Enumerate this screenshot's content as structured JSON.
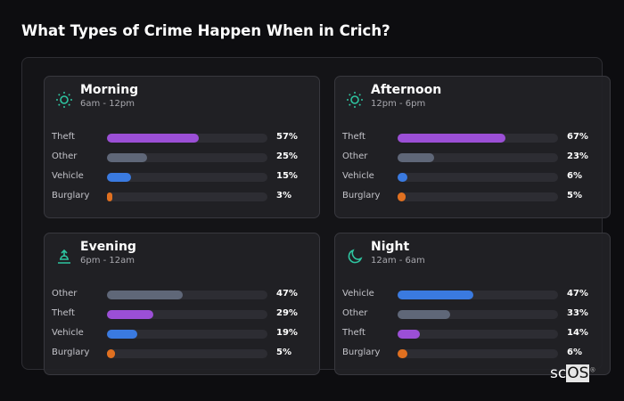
{
  "title": "What Types of Crime Happen When in Crich?",
  "colors": {
    "Theft": "#9b4fd6",
    "Other": "#5f6778",
    "Vehicle": "#3a7ae0",
    "Burglary": "#e07020",
    "icon": "#2ec4a0"
  },
  "cards": [
    {
      "name": "Morning",
      "range": "6am - 12pm",
      "icon": "sun-icon",
      "rows": [
        {
          "label": "Theft",
          "value": 57,
          "text": "57%"
        },
        {
          "label": "Other",
          "value": 25,
          "text": "25%"
        },
        {
          "label": "Vehicle",
          "value": 15,
          "text": "15%"
        },
        {
          "label": "Burglary",
          "value": 3,
          "text": "3%"
        }
      ]
    },
    {
      "name": "Afternoon",
      "range": "12pm - 6pm",
      "icon": "sun-icon",
      "rows": [
        {
          "label": "Theft",
          "value": 67,
          "text": "67%"
        },
        {
          "label": "Other",
          "value": 23,
          "text": "23%"
        },
        {
          "label": "Vehicle",
          "value": 6,
          "text": "6%"
        },
        {
          "label": "Burglary",
          "value": 5,
          "text": "5%"
        }
      ]
    },
    {
      "name": "Evening",
      "range": "6pm - 12am",
      "icon": "sunset-icon",
      "rows": [
        {
          "label": "Other",
          "value": 47,
          "text": "47%"
        },
        {
          "label": "Theft",
          "value": 29,
          "text": "29%"
        },
        {
          "label": "Vehicle",
          "value": 19,
          "text": "19%"
        },
        {
          "label": "Burglary",
          "value": 5,
          "text": "5%"
        }
      ]
    },
    {
      "name": "Night",
      "range": "12am - 6am",
      "icon": "moon-icon",
      "rows": [
        {
          "label": "Vehicle",
          "value": 47,
          "text": "47%"
        },
        {
          "label": "Other",
          "value": 33,
          "text": "33%"
        },
        {
          "label": "Theft",
          "value": 14,
          "text": "14%"
        },
        {
          "label": "Burglary",
          "value": 6,
          "text": "6%"
        }
      ]
    }
  ],
  "logo": "scOS"
}
